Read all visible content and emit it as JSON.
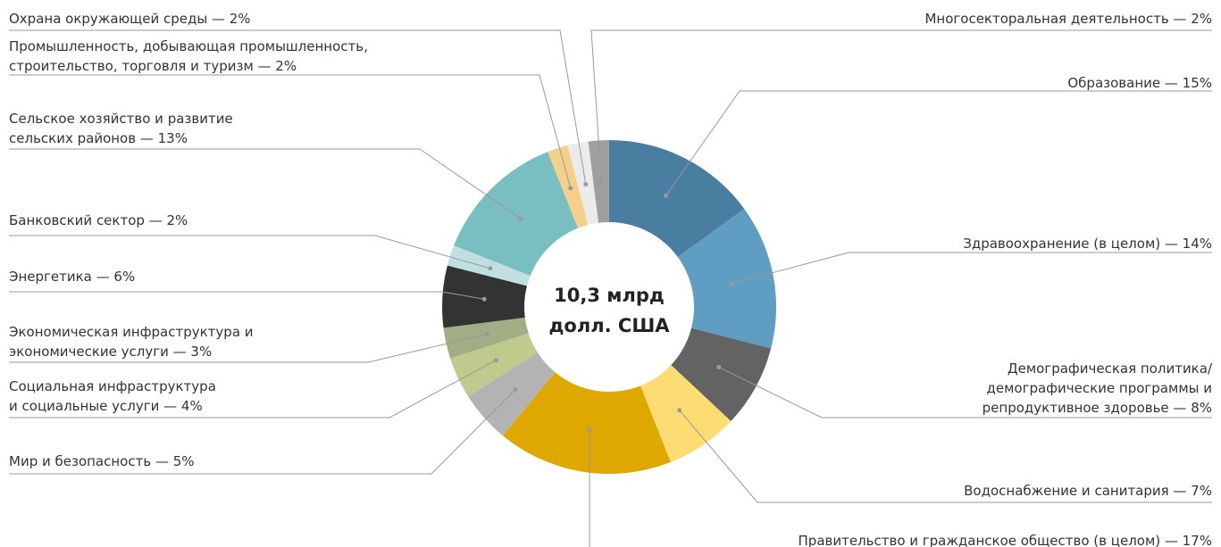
{
  "chart_data": {
    "type": "donut",
    "center_label": [
      "10,3 млрд",
      "долл. США"
    ],
    "labels": [
      [
        "Образование — 15%"
      ],
      [
        "Здравоохранение (в целом) — 14%"
      ],
      [
        "Демографическая политика/",
        "демографические программы и",
        "репродуктивное здоровье — 8%"
      ],
      [
        "Водоснабжение и санитария — 7%"
      ],
      [
        "Правительство и гражданское общество (в целом) — 17%"
      ],
      [
        "Мир и безопасность — 5%"
      ],
      [
        "Социальная инфраструктура",
        "и социальные услуги — 4%"
      ],
      [
        "Экономическая инфраструктура и",
        "экономические услуги — 3%"
      ],
      [
        "Энергетика — 6%"
      ],
      [
        "Банковский сектор — 2%"
      ],
      [
        "Сельское хозяйство и развитие",
        "сельских районов — 13%"
      ],
      [
        "Промышленность, добывающая промышленность,",
        "строительство, торговля и туризм — 2%"
      ],
      [
        "Охрана окружающей среды — 2%"
      ],
      [
        "Многосекторальная деятельность — 2%"
      ]
    ],
    "values": [
      15,
      14,
      8,
      7,
      17,
      5,
      4,
      3,
      6,
      2,
      13,
      2,
      2,
      2
    ],
    "colors": [
      "#4a7ea0",
      "#5f9dc2",
      "#636363",
      "#fddc74",
      "#dfa800",
      "#b3b3b3",
      "#bfcb8c",
      "#a2ad86",
      "#333333",
      "#c0dfe0",
      "#79bec0",
      "#f5d08a",
      "#ebebeb",
      "#9f9f9f"
    ]
  }
}
